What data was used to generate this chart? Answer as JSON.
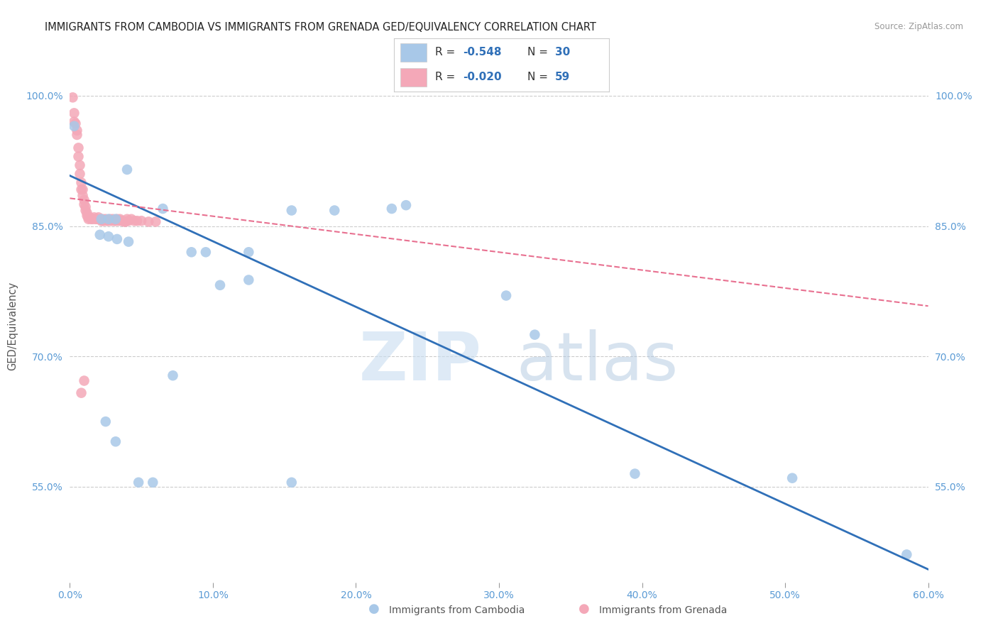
{
  "title": "IMMIGRANTS FROM CAMBODIA VS IMMIGRANTS FROM GRENADA GED/EQUIVALENCY CORRELATION CHART",
  "source": "Source: ZipAtlas.com",
  "ylabel": "GED/Equivalency",
  "xlim": [
    0.0,
    0.6
  ],
  "ylim": [
    0.44,
    1.03
  ],
  "xticks": [
    0.0,
    0.1,
    0.2,
    0.3,
    0.4,
    0.5,
    0.6
  ],
  "xticklabels": [
    "0.0%",
    "10.0%",
    "20.0%",
    "30.0%",
    "40.0%",
    "50.0%",
    "60.0%"
  ],
  "yticks": [
    0.55,
    0.7,
    0.85,
    1.0
  ],
  "yticklabels": [
    "55.0%",
    "70.0%",
    "85.0%",
    "100.0%"
  ],
  "blue_color": "#a8c8e8",
  "pink_color": "#f4a8b8",
  "blue_line_color": "#3070b8",
  "pink_line_color": "#e87090",
  "blue_scatter_x": [
    0.003,
    0.04,
    0.022,
    0.027,
    0.032,
    0.021,
    0.027,
    0.033,
    0.041,
    0.065,
    0.085,
    0.105,
    0.125,
    0.155,
    0.185,
    0.225,
    0.235,
    0.095,
    0.125,
    0.305,
    0.325,
    0.025,
    0.032,
    0.048,
    0.058,
    0.395,
    0.505,
    0.072,
    0.155,
    0.585
  ],
  "blue_scatter_y": [
    0.965,
    0.915,
    0.858,
    0.858,
    0.858,
    0.84,
    0.838,
    0.835,
    0.832,
    0.87,
    0.82,
    0.782,
    0.788,
    0.868,
    0.868,
    0.87,
    0.874,
    0.82,
    0.82,
    0.77,
    0.725,
    0.625,
    0.602,
    0.555,
    0.555,
    0.565,
    0.56,
    0.678,
    0.555,
    0.472
  ],
  "pink_scatter_x": [
    0.002,
    0.003,
    0.003,
    0.004,
    0.005,
    0.005,
    0.006,
    0.006,
    0.007,
    0.007,
    0.008,
    0.008,
    0.009,
    0.009,
    0.01,
    0.01,
    0.011,
    0.011,
    0.012,
    0.012,
    0.013,
    0.013,
    0.014,
    0.015,
    0.016,
    0.017,
    0.018,
    0.019,
    0.02,
    0.021,
    0.022,
    0.023,
    0.023,
    0.024,
    0.025,
    0.026,
    0.027,
    0.028,
    0.029,
    0.03,
    0.031,
    0.032,
    0.033,
    0.034,
    0.035,
    0.036,
    0.037,
    0.038,
    0.039,
    0.04,
    0.041,
    0.043,
    0.045,
    0.047,
    0.05,
    0.055,
    0.06,
    0.008,
    0.01
  ],
  "pink_scatter_y": [
    0.998,
    0.98,
    0.97,
    0.968,
    0.96,
    0.955,
    0.94,
    0.93,
    0.92,
    0.91,
    0.9,
    0.892,
    0.885,
    0.892,
    0.88,
    0.875,
    0.872,
    0.868,
    0.865,
    0.862,
    0.86,
    0.858,
    0.86,
    0.858,
    0.858,
    0.86,
    0.858,
    0.858,
    0.86,
    0.858,
    0.856,
    0.856,
    0.858,
    0.856,
    0.858,
    0.856,
    0.856,
    0.858,
    0.856,
    0.858,
    0.856,
    0.856,
    0.858,
    0.856,
    0.858,
    0.856,
    0.856,
    0.855,
    0.855,
    0.858,
    0.856,
    0.858,
    0.856,
    0.856,
    0.856,
    0.855,
    0.855,
    0.658,
    0.672
  ],
  "blue_line_x": [
    0.0,
    0.6
  ],
  "blue_line_y": [
    0.908,
    0.455
  ],
  "pink_line_x": [
    0.0,
    0.6
  ],
  "pink_line_y": [
    0.882,
    0.758
  ],
  "watermark_zip": "ZIP",
  "watermark_atlas": "atlas",
  "background_color": "#ffffff",
  "grid_color": "#cccccc",
  "title_fontsize": 10.5,
  "tick_label_color": "#5b9bd5",
  "legend_blue_r": "-0.548",
  "legend_blue_n": "30",
  "legend_pink_r": "-0.020",
  "legend_pink_n": "59"
}
